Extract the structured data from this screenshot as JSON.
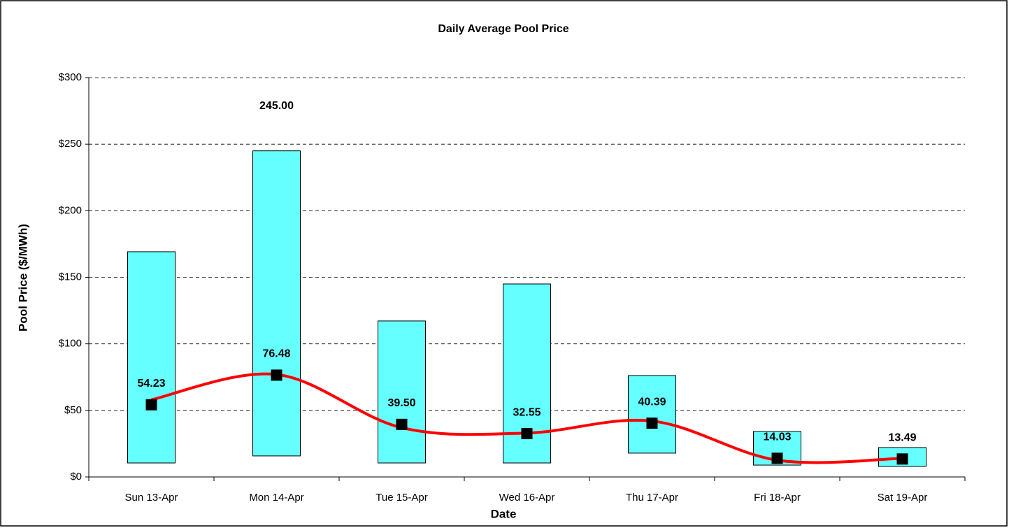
{
  "chart_data": {
    "type": "range-bar",
    "title": "Daily Average Pool Price",
    "x_label": "Date",
    "y_label": "Pool Price ($/MWh)",
    "categories": [
      "Sun 13-Apr",
      "Mon 14-Apr",
      "Tue 15-Apr",
      "Wed 16-Apr",
      "Thu 17-Apr",
      "Fri 18-Apr",
      "Sat 19-Apr"
    ],
    "high": [
      169.2,
      245,
      117.2,
      145,
      76.2,
      34.2,
      22.1
    ],
    "low": [
      10.5,
      15.8,
      10.5,
      10.5,
      17.9,
      8.9,
      7.9
    ],
    "bar_color": "#66ffff",
    "average": {
      "values": [
        54.23,
        76.48,
        39.5,
        32.55,
        40.39,
        14.03,
        13.49
      ],
      "value_labels": [
        "54.23",
        "76.48",
        "39.50",
        "32.55",
        "40.39",
        "14.03",
        "13.49"
      ],
      "color": "#000000"
    },
    "trend": {
      "values": [
        58,
        77,
        37,
        33,
        42,
        12.6,
        14
      ],
      "color": "#ff0000"
    },
    "annotations": [
      {
        "text": "245.00",
        "x": "Mon 14-Apr",
        "y": 245
      }
    ],
    "ylim": [
      0,
      300
    ],
    "yticks": [
      {
        "value": 0,
        "label": "$0"
      },
      {
        "value": 50,
        "label": "$50"
      },
      {
        "value": 100,
        "label": "$100"
      },
      {
        "value": 150,
        "label": "$150"
      },
      {
        "value": 200,
        "label": "$200"
      },
      {
        "value": 250,
        "label": "$250"
      },
      {
        "value": 300,
        "label": "$300"
      }
    ],
    "grid": true
  }
}
